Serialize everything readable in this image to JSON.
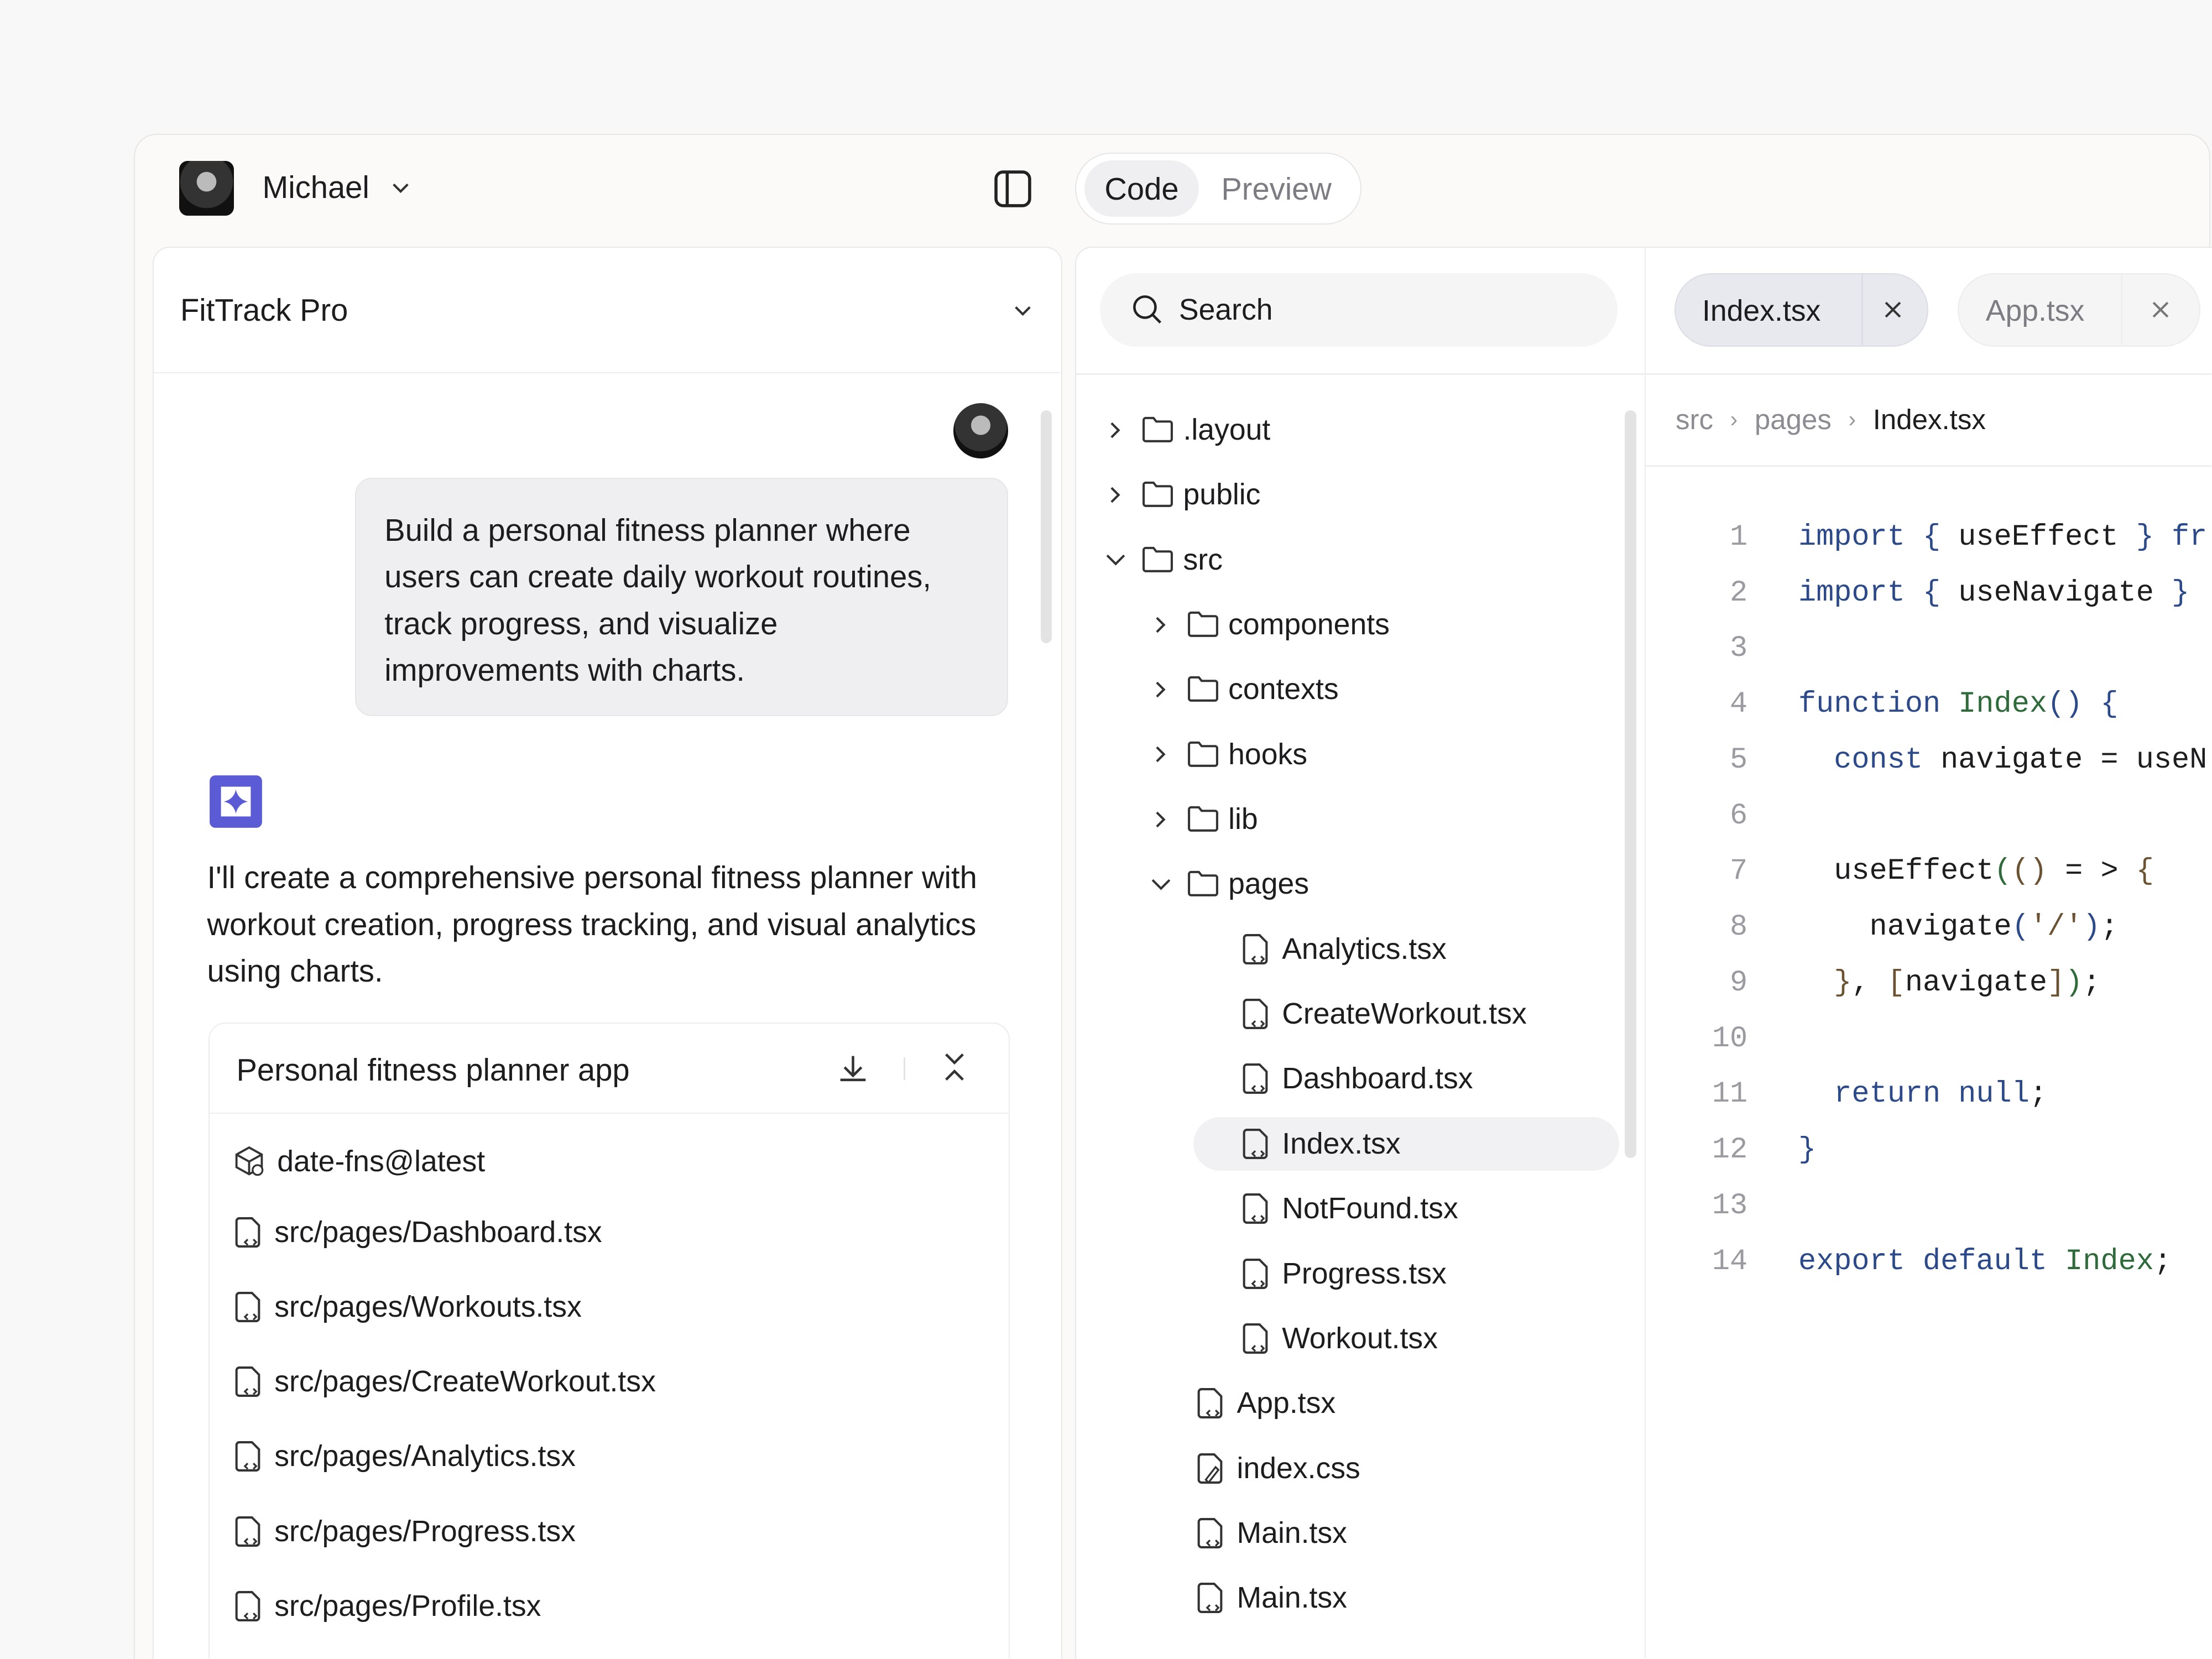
{
  "header": {
    "user_name": "Michael",
    "view_tabs": [
      {
        "label": "Code",
        "active": true
      },
      {
        "label": "Preview",
        "active": false
      }
    ]
  },
  "chat": {
    "project_name": "FitTrack Pro",
    "user_message": "Build a personal fitness planner where users can create daily workout routines, track progress, and visualize improvements with charts.",
    "assistant_message": "I'll create a comprehensive personal fitness planner with workout creation, progress tracking, and visual analytics using charts.",
    "artifact": {
      "title": "Personal fitness planner app",
      "items": [
        {
          "icon": "package-icon",
          "label": "date-fns@latest"
        },
        {
          "icon": "file-code-icon",
          "label": "src/pages/Dashboard.tsx"
        },
        {
          "icon": "file-code-icon",
          "label": "src/pages/Workouts.tsx"
        },
        {
          "icon": "file-code-icon",
          "label": "src/pages/CreateWorkout.tsx"
        },
        {
          "icon": "file-code-icon",
          "label": "src/pages/Analytics.tsx"
        },
        {
          "icon": "file-code-icon",
          "label": "src/pages/Progress.tsx"
        },
        {
          "icon": "file-code-icon",
          "label": "src/pages/Profile.tsx"
        }
      ]
    }
  },
  "explorer": {
    "search_placeholder": "Search",
    "tree": [
      {
        "label": ".layout",
        "type": "folder",
        "level": 0,
        "open": false
      },
      {
        "label": "public",
        "type": "folder",
        "level": 0,
        "open": false
      },
      {
        "label": "src",
        "type": "folder",
        "level": 0,
        "open": true
      },
      {
        "label": "components",
        "type": "folder",
        "level": 1,
        "open": false
      },
      {
        "label": "contexts",
        "type": "folder",
        "level": 1,
        "open": false
      },
      {
        "label": "hooks",
        "type": "folder",
        "level": 1,
        "open": false
      },
      {
        "label": "lib",
        "type": "folder",
        "level": 1,
        "open": false
      },
      {
        "label": "pages",
        "type": "folder",
        "level": 1,
        "open": true
      },
      {
        "label": "Analytics.tsx",
        "type": "file",
        "level": 2
      },
      {
        "label": "CreateWorkout.tsx",
        "type": "file",
        "level": 2
      },
      {
        "label": "Dashboard.tsx",
        "type": "file",
        "level": 2
      },
      {
        "label": "Index.tsx",
        "type": "file",
        "level": 2,
        "selected": true
      },
      {
        "label": "NotFound.tsx",
        "type": "file",
        "level": 2
      },
      {
        "label": "Progress.tsx",
        "type": "file",
        "level": 2
      },
      {
        "label": "Workout.tsx",
        "type": "file",
        "level": 2
      },
      {
        "label": "App.tsx",
        "type": "file",
        "level": 1
      },
      {
        "label": "index.css",
        "type": "css",
        "level": 1
      },
      {
        "label": "Main.tsx",
        "type": "file",
        "level": 1
      },
      {
        "label": "Main.tsx",
        "type": "file",
        "level": 1
      }
    ]
  },
  "editor": {
    "tabs": [
      {
        "label": "Index.tsx",
        "active": true
      },
      {
        "label": "App.tsx",
        "active": false
      }
    ],
    "breadcrumb": [
      "src",
      "pages",
      "Index.tsx"
    ],
    "lines": [
      [
        [
          "kw",
          "import "
        ],
        [
          "kw",
          "{ "
        ],
        [
          "tx",
          "useEffect "
        ],
        [
          "kw",
          "} "
        ],
        [
          "kw",
          "fr"
        ]
      ],
      [
        [
          "kw",
          "import "
        ],
        [
          "kw",
          "{ "
        ],
        [
          "tx",
          "useNavigate "
        ],
        [
          "kw",
          "}"
        ]
      ],
      [],
      [
        [
          "kw",
          "function "
        ],
        [
          "fn",
          "Index"
        ],
        [
          "kw",
          "() {"
        ]
      ],
      [
        [
          "kw",
          "  const "
        ],
        [
          "tx",
          "navigate = useN"
        ]
      ],
      [],
      [
        [
          "tx",
          "  useEffect"
        ],
        [
          "gr",
          "("
        ],
        [
          "br",
          "()"
        ],
        [
          "tx",
          " = > "
        ],
        [
          "br",
          "{"
        ]
      ],
      [
        [
          "tx",
          "    navigate"
        ],
        [
          "kw",
          "("
        ],
        [
          "br",
          "'/'"
        ],
        [
          "kw",
          ")"
        ],
        [
          "tx",
          ";"
        ]
      ],
      [
        [
          "br",
          "  }"
        ],
        [
          "tx",
          ", "
        ],
        [
          "br",
          "["
        ],
        [
          "tx",
          "navigate"
        ],
        [
          "br",
          "]"
        ],
        [
          "gr",
          ")"
        ],
        [
          "tx",
          ";"
        ]
      ],
      [],
      [
        [
          "kw",
          "  return null"
        ],
        [
          "tx",
          ";"
        ]
      ],
      [
        [
          "kw",
          "}"
        ]
      ],
      [],
      [
        [
          "kw",
          "export default "
        ],
        [
          "fn",
          "Index"
        ],
        [
          "tx",
          ";"
        ]
      ]
    ]
  },
  "colors": {
    "accent": "#5b5bd6",
    "keyword": "#2c4a8a",
    "function": "#2f6b3a",
    "bracket": "#6b5232"
  }
}
